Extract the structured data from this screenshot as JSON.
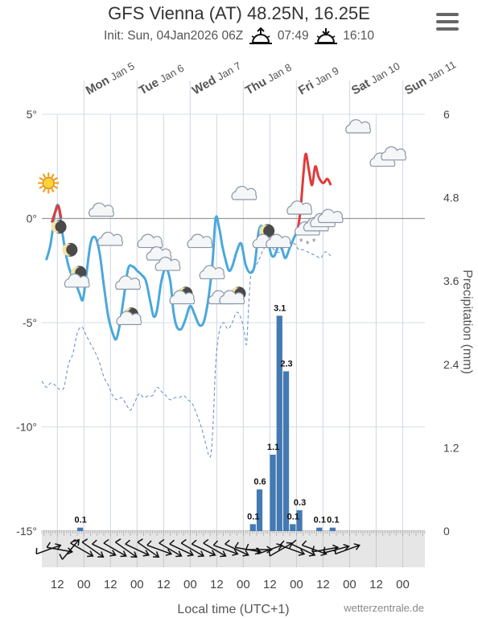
{
  "header": {
    "title": "GFS Vienna (AT) 48.25N, 16.25E",
    "init_label": "Init: Sun, 04Jan2026 06Z",
    "sunrise": "07:49",
    "sunset": "16:10",
    "sunrise_icon": "sunrise-icon",
    "sunset_icon": "sunset-icon",
    "menu_icon": "hamburger-menu-icon"
  },
  "chart_data": {
    "type": "line",
    "day_labels": [
      {
        "day": "Mon",
        "date": "Jan 5",
        "x": 24
      },
      {
        "day": "Tue",
        "date": "Jan 6",
        "x": 48
      },
      {
        "day": "Wed",
        "date": "Jan 7",
        "x": 72
      },
      {
        "day": "Thu",
        "date": "Jan 8",
        "x": 96
      },
      {
        "day": "Fri",
        "date": "Jan 9",
        "x": 120
      },
      {
        "day": "Sat",
        "date": "Jan 10",
        "x": 144
      },
      {
        "day": "Sun",
        "date": "Jan 11",
        "x": 168
      }
    ],
    "x_ticks": [
      {
        "x": 12,
        "label": "12"
      },
      {
        "x": 24,
        "label": "00"
      },
      {
        "x": 36,
        "label": "12"
      },
      {
        "x": 48,
        "label": "00"
      },
      {
        "x": 60,
        "label": "12"
      },
      {
        "x": 72,
        "label": "00"
      },
      {
        "x": 84,
        "label": "12"
      },
      {
        "x": 96,
        "label": "00"
      },
      {
        "x": 108,
        "label": "12"
      },
      {
        "x": 120,
        "label": "00"
      },
      {
        "x": 132,
        "label": "12"
      },
      {
        "x": 144,
        "label": "00"
      },
      {
        "x": 156,
        "label": "12"
      },
      {
        "x": 168,
        "label": "00"
      }
    ],
    "xlim": [
      5,
      178
    ],
    "xlabel": "Local time (UTC+1)",
    "ylim_temp": [
      -15,
      5
    ],
    "yticks_temp": [
      {
        "v": 5,
        "label": "5°"
      },
      {
        "v": 0,
        "label": "0°"
      },
      {
        "v": -5,
        "label": "-5°"
      },
      {
        "v": -10,
        "label": "-10°"
      },
      {
        "v": -15,
        "label": "-15°"
      }
    ],
    "ylim_precip": [
      0,
      6
    ],
    "yticks_precip": [
      {
        "v": 6,
        "label": "6"
      },
      {
        "v": 4.8,
        "label": "4.8"
      },
      {
        "v": 3.6,
        "label": "3.6"
      },
      {
        "v": 2.4,
        "label": "2.4"
      },
      {
        "v": 1.2,
        "label": "1.2"
      },
      {
        "v": 0,
        "label": "0"
      }
    ],
    "ylabel_right": "Precipitation (mm)",
    "temperature": [
      [
        7,
        -2
      ],
      [
        9,
        -1.2
      ],
      [
        11,
        0.3
      ],
      [
        12.5,
        0.6
      ],
      [
        14,
        -0.5
      ],
      [
        16,
        -1.8
      ],
      [
        18,
        -2.6
      ],
      [
        20,
        -3
      ],
      [
        22,
        -3.6
      ],
      [
        23.5,
        -3.9
      ],
      [
        25,
        -2.8
      ],
      [
        27,
        -1.2
      ],
      [
        29,
        -0.9
      ],
      [
        31,
        -1.6
      ],
      [
        33,
        -3.2
      ],
      [
        35,
        -4.7
      ],
      [
        37,
        -5.5
      ],
      [
        38.5,
        -5.8
      ],
      [
        40,
        -5.2
      ],
      [
        42,
        -3.8
      ],
      [
        44,
        -2.4
      ],
      [
        46,
        -2.3
      ],
      [
        48,
        -2.5
      ],
      [
        50,
        -2.7
      ],
      [
        52,
        -3
      ],
      [
        54,
        -4
      ],
      [
        55.5,
        -4.7
      ],
      [
        57,
        -4.4
      ],
      [
        59,
        -3
      ],
      [
        61,
        -2.4
      ],
      [
        63,
        -3
      ],
      [
        64.5,
        -4.5
      ],
      [
        66,
        -5.2
      ],
      [
        68,
        -5.3
      ],
      [
        70,
        -4.8
      ],
      [
        72,
        -4.2
      ],
      [
        74,
        -4.6
      ],
      [
        76,
        -5.1
      ],
      [
        78,
        -5
      ],
      [
        80,
        -4
      ],
      [
        82,
        -2.2
      ],
      [
        83.5,
        0
      ],
      [
        85,
        -0.4
      ],
      [
        86.5,
        -1.3
      ],
      [
        88,
        -2
      ],
      [
        89.5,
        -2.5
      ],
      [
        91,
        -2.3
      ],
      [
        93,
        -1.6
      ],
      [
        95,
        -1.2
      ],
      [
        97,
        -2.2
      ],
      [
        99,
        -2.6
      ],
      [
        101,
        -2.3
      ],
      [
        103,
        -0.6
      ],
      [
        105,
        -0.4
      ],
      [
        107,
        -1
      ],
      [
        108.5,
        -1.7
      ],
      [
        110,
        -1.8
      ],
      [
        112,
        -1.3
      ],
      [
        113.5,
        -1.5
      ],
      [
        115,
        -1.9
      ],
      [
        117,
        -1.4
      ],
      [
        119,
        -0.9
      ],
      [
        120.5,
        -0.6
      ]
    ],
    "temperature_warm": [
      [
        9.5,
        -0.2
      ],
      [
        11,
        0.3
      ],
      [
        12.5,
        0.6
      ],
      [
        13.7,
        0
      ],
      [
        120.5,
        -0.6
      ],
      [
        121.8,
        0.4
      ],
      [
        123.2,
        2.2
      ],
      [
        124.2,
        3.1
      ],
      [
        125.5,
        2.4
      ],
      [
        127,
        1.6
      ],
      [
        128.5,
        2.5
      ],
      [
        130,
        2
      ],
      [
        132,
        1.7
      ],
      [
        134,
        1.9
      ],
      [
        135.5,
        1.6
      ]
    ],
    "dewpoint": [
      [
        5,
        -7.8
      ],
      [
        7,
        -8.1
      ],
      [
        9,
        -7.9
      ],
      [
        11,
        -8
      ],
      [
        13,
        -8.2
      ],
      [
        15,
        -8.1
      ],
      [
        17,
        -7
      ],
      [
        19,
        -6.5
      ],
      [
        21,
        -5.5
      ],
      [
        23,
        -5.2
      ],
      [
        25,
        -5.6
      ],
      [
        27,
        -6
      ],
      [
        29,
        -6.4
      ],
      [
        31,
        -6.9
      ],
      [
        33,
        -7.6
      ],
      [
        35,
        -8
      ],
      [
        37,
        -8.5
      ],
      [
        39,
        -8.7
      ],
      [
        41,
        -8.6
      ],
      [
        43,
        -8.9
      ],
      [
        45,
        -9.2
      ],
      [
        47,
        -8.8
      ],
      [
        49,
        -8.4
      ],
      [
        51,
        -8.6
      ],
      [
        53,
        -8.5
      ],
      [
        55,
        -8.5
      ],
      [
        57,
        -8.1
      ],
      [
        59,
        -8.3
      ],
      [
        61,
        -8.5
      ],
      [
        63,
        -8.7
      ],
      [
        65,
        -8.6
      ],
      [
        67,
        -8.6
      ],
      [
        69,
        -8.5
      ],
      [
        71,
        -8.7
      ],
      [
        73,
        -8.9
      ],
      [
        75,
        -9.4
      ],
      [
        77,
        -10
      ],
      [
        79,
        -10.8
      ],
      [
        80.5,
        -11.4
      ],
      [
        81.5,
        -11.2
      ],
      [
        82.5,
        -9.5
      ],
      [
        83.5,
        -7
      ],
      [
        85,
        -5.5
      ],
      [
        87,
        -5
      ],
      [
        89,
        -5.3
      ],
      [
        91,
        -5
      ],
      [
        93,
        -4.5
      ],
      [
        95,
        -4.8
      ],
      [
        96.5,
        -5.5
      ],
      [
        97.5,
        -6
      ],
      [
        98.5,
        -4
      ],
      [
        99.5,
        -2.6
      ],
      [
        101,
        -2.4
      ],
      [
        103,
        -2
      ],
      [
        105,
        -1.5
      ],
      [
        107,
        -1.3
      ],
      [
        109,
        -1.4
      ],
      [
        111,
        -1.6
      ],
      [
        113,
        -1.6
      ],
      [
        115,
        -1.3
      ],
      [
        117,
        -1.4
      ],
      [
        119,
        -1.2
      ],
      [
        121,
        -1.5
      ],
      [
        123,
        -1.5
      ],
      [
        125,
        -1.6
      ],
      [
        127,
        -1.7
      ],
      [
        129,
        -1.8
      ],
      [
        131,
        -1.9
      ],
      [
        133,
        -1.6
      ],
      [
        135.5,
        -1.8
      ]
    ],
    "precipitation": [
      {
        "x": 22.5,
        "v": 0.05,
        "label": "0.1"
      },
      {
        "x": 100.5,
        "v": 0.1,
        "label": "0.1"
      },
      {
        "x": 103.5,
        "v": 0.6,
        "label": "0.6"
      },
      {
        "x": 109.5,
        "v": 1.1,
        "label": "1.1"
      },
      {
        "x": 112.5,
        "v": 3.1,
        "label": "3.1"
      },
      {
        "x": 115.5,
        "v": 2.3,
        "label": "2.3"
      },
      {
        "x": 118.5,
        "v": 0.1,
        "label": "0.1"
      },
      {
        "x": 121.5,
        "v": 0.3,
        "label": "0.3"
      },
      {
        "x": 130.5,
        "v": 0.05,
        "label": "0.1"
      },
      {
        "x": 136.5,
        "v": 0.05,
        "label": "0.1"
      }
    ],
    "weather_icons": [
      {
        "kind": "sun",
        "x": 8,
        "v": 1.7
      },
      {
        "kind": "moon",
        "x": 13,
        "v": -0.4
      },
      {
        "kind": "cloud",
        "x": 32,
        "v": 0.3
      },
      {
        "kind": "moon",
        "x": 18,
        "v": -1.5
      },
      {
        "kind": "moon",
        "x": 22,
        "v": -2.6
      },
      {
        "kind": "cloud",
        "x": 21,
        "v": -3.1
      },
      {
        "kind": "cloud",
        "x": 36,
        "v": -1.1
      },
      {
        "kind": "cloud",
        "x": 44,
        "v": -3.2
      },
      {
        "kind": "moon",
        "x": 45.5,
        "v": -4.6
      },
      {
        "kind": "cloud",
        "x": 44.5,
        "v": -4.9
      },
      {
        "kind": "cloud",
        "x": 54,
        "v": -1.2
      },
      {
        "kind": "cloud",
        "x": 58,
        "v": -1.8
      },
      {
        "kind": "cloud",
        "x": 62,
        "v": -2.3
      },
      {
        "kind": "moon",
        "x": 70,
        "v": -3.6
      },
      {
        "kind": "cloud",
        "x": 68.5,
        "v": -3.9
      },
      {
        "kind": "cloud",
        "x": 76.5,
        "v": -1.2
      },
      {
        "kind": "cloud",
        "x": 82,
        "v": -2.7
      },
      {
        "kind": "moon",
        "x": 94,
        "v": -3.6
      },
      {
        "kind": "cloud",
        "x": 86,
        "v": -3.9
      },
      {
        "kind": "cloud",
        "x": 91,
        "v": -3.9
      },
      {
        "kind": "cloud",
        "x": 96.5,
        "v": 1.1
      },
      {
        "kind": "moon",
        "x": 107,
        "v": -0.6
      },
      {
        "kind": "cloud",
        "x": 106,
        "v": -1.2
      },
      {
        "kind": "cloud",
        "x": 112,
        "v": -1.2
      },
      {
        "kind": "cloud",
        "x": 121.5,
        "v": 0.4
      },
      {
        "kind": "snow-cloud",
        "x": 125,
        "v": -0.6
      },
      {
        "kind": "cloud",
        "x": 129,
        "v": -0.4
      },
      {
        "kind": "cloud",
        "x": 132,
        "v": -0.2
      },
      {
        "kind": "cloud",
        "x": 135.5,
        "v": 0
      },
      {
        "kind": "cloud",
        "x": 148,
        "v": 4.3
      },
      {
        "kind": "cloud",
        "x": 159,
        "v": 2.7
      },
      {
        "kind": "cloud",
        "x": 164,
        "v": 3
      }
    ],
    "wind_dirs": [
      250,
      280,
      220,
      300,
      305,
      295,
      300,
      305,
      295,
      305,
      290,
      300,
      295,
      300,
      295,
      300,
      290,
      295,
      280,
      270,
      250,
      240,
      290,
      295,
      290,
      260,
      255,
      250
    ],
    "wind_x_start": 8,
    "wind_x_step": 5,
    "watermark": "wetterzentrale.de"
  },
  "colors": {
    "temperature": "#4aa8dc",
    "temperature_warm": "#e03a3a",
    "dewpoint": "#5e8cc8",
    "precip_bar": "#4479b2",
    "grid": "#d6dde8",
    "zero_line": "#999999",
    "wind_strip": "#e6e6e6"
  }
}
